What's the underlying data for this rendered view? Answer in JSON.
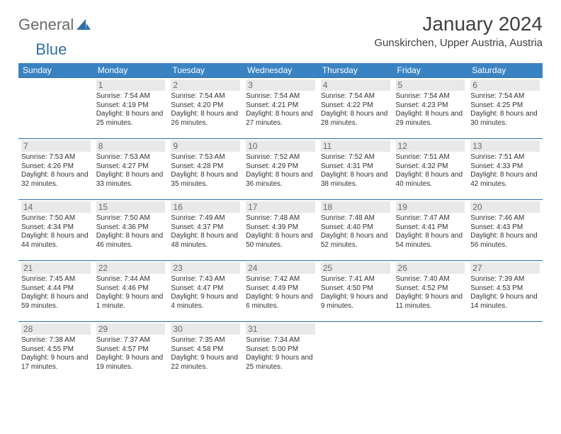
{
  "logo": {
    "general": "General",
    "blue": "Blue"
  },
  "title": "January 2024",
  "location": "Gunskirchen, Upper Austria, Austria",
  "colors": {
    "header_bg": "#3a83c3",
    "header_text": "#ffffff",
    "rule": "#2f6fa8",
    "daynum_bg": "#e9e9e9",
    "logo_general": "#6b6b6b",
    "logo_blue": "#2f6fa8",
    "logo_tri": "#2f6fa8"
  },
  "fonts": {
    "title_pt": 28,
    "location_pt": 15,
    "th_pt": 12,
    "daynum_pt": 12,
    "body_pt": 10
  },
  "weekdays": [
    "Sunday",
    "Monday",
    "Tuesday",
    "Wednesday",
    "Thursday",
    "Friday",
    "Saturday"
  ],
  "weeks": [
    [
      null,
      {
        "n": "1",
        "sr": "7:54 AM",
        "ss": "4:19 PM",
        "dl": "8 hours and 25 minutes."
      },
      {
        "n": "2",
        "sr": "7:54 AM",
        "ss": "4:20 PM",
        "dl": "8 hours and 26 minutes."
      },
      {
        "n": "3",
        "sr": "7:54 AM",
        "ss": "4:21 PM",
        "dl": "8 hours and 27 minutes."
      },
      {
        "n": "4",
        "sr": "7:54 AM",
        "ss": "4:22 PM",
        "dl": "8 hours and 28 minutes."
      },
      {
        "n": "5",
        "sr": "7:54 AM",
        "ss": "4:23 PM",
        "dl": "8 hours and 29 minutes."
      },
      {
        "n": "6",
        "sr": "7:54 AM",
        "ss": "4:25 PM",
        "dl": "8 hours and 30 minutes."
      }
    ],
    [
      {
        "n": "7",
        "sr": "7:53 AM",
        "ss": "4:26 PM",
        "dl": "8 hours and 32 minutes."
      },
      {
        "n": "8",
        "sr": "7:53 AM",
        "ss": "4:27 PM",
        "dl": "8 hours and 33 minutes."
      },
      {
        "n": "9",
        "sr": "7:53 AM",
        "ss": "4:28 PM",
        "dl": "8 hours and 35 minutes."
      },
      {
        "n": "10",
        "sr": "7:52 AM",
        "ss": "4:29 PM",
        "dl": "8 hours and 36 minutes."
      },
      {
        "n": "11",
        "sr": "7:52 AM",
        "ss": "4:31 PM",
        "dl": "8 hours and 38 minutes."
      },
      {
        "n": "12",
        "sr": "7:51 AM",
        "ss": "4:32 PM",
        "dl": "8 hours and 40 minutes."
      },
      {
        "n": "13",
        "sr": "7:51 AM",
        "ss": "4:33 PM",
        "dl": "8 hours and 42 minutes."
      }
    ],
    [
      {
        "n": "14",
        "sr": "7:50 AM",
        "ss": "4:34 PM",
        "dl": "8 hours and 44 minutes."
      },
      {
        "n": "15",
        "sr": "7:50 AM",
        "ss": "4:36 PM",
        "dl": "8 hours and 46 minutes."
      },
      {
        "n": "16",
        "sr": "7:49 AM",
        "ss": "4:37 PM",
        "dl": "8 hours and 48 minutes."
      },
      {
        "n": "17",
        "sr": "7:48 AM",
        "ss": "4:39 PM",
        "dl": "8 hours and 50 minutes."
      },
      {
        "n": "18",
        "sr": "7:48 AM",
        "ss": "4:40 PM",
        "dl": "8 hours and 52 minutes."
      },
      {
        "n": "19",
        "sr": "7:47 AM",
        "ss": "4:41 PM",
        "dl": "8 hours and 54 minutes."
      },
      {
        "n": "20",
        "sr": "7:46 AM",
        "ss": "4:43 PM",
        "dl": "8 hours and 56 minutes."
      }
    ],
    [
      {
        "n": "21",
        "sr": "7:45 AM",
        "ss": "4:44 PM",
        "dl": "8 hours and 59 minutes."
      },
      {
        "n": "22",
        "sr": "7:44 AM",
        "ss": "4:46 PM",
        "dl": "9 hours and 1 minute."
      },
      {
        "n": "23",
        "sr": "7:43 AM",
        "ss": "4:47 PM",
        "dl": "9 hours and 4 minutes."
      },
      {
        "n": "24",
        "sr": "7:42 AM",
        "ss": "4:49 PM",
        "dl": "9 hours and 6 minutes."
      },
      {
        "n": "25",
        "sr": "7:41 AM",
        "ss": "4:50 PM",
        "dl": "9 hours and 9 minutes."
      },
      {
        "n": "26",
        "sr": "7:40 AM",
        "ss": "4:52 PM",
        "dl": "9 hours and 11 minutes."
      },
      {
        "n": "27",
        "sr": "7:39 AM",
        "ss": "4:53 PM",
        "dl": "9 hours and 14 minutes."
      }
    ],
    [
      {
        "n": "28",
        "sr": "7:38 AM",
        "ss": "4:55 PM",
        "dl": "9 hours and 17 minutes."
      },
      {
        "n": "29",
        "sr": "7:37 AM",
        "ss": "4:57 PM",
        "dl": "9 hours and 19 minutes."
      },
      {
        "n": "30",
        "sr": "7:35 AM",
        "ss": "4:58 PM",
        "dl": "9 hours and 22 minutes."
      },
      {
        "n": "31",
        "sr": "7:34 AM",
        "ss": "5:00 PM",
        "dl": "9 hours and 25 minutes."
      },
      null,
      null,
      null
    ]
  ]
}
